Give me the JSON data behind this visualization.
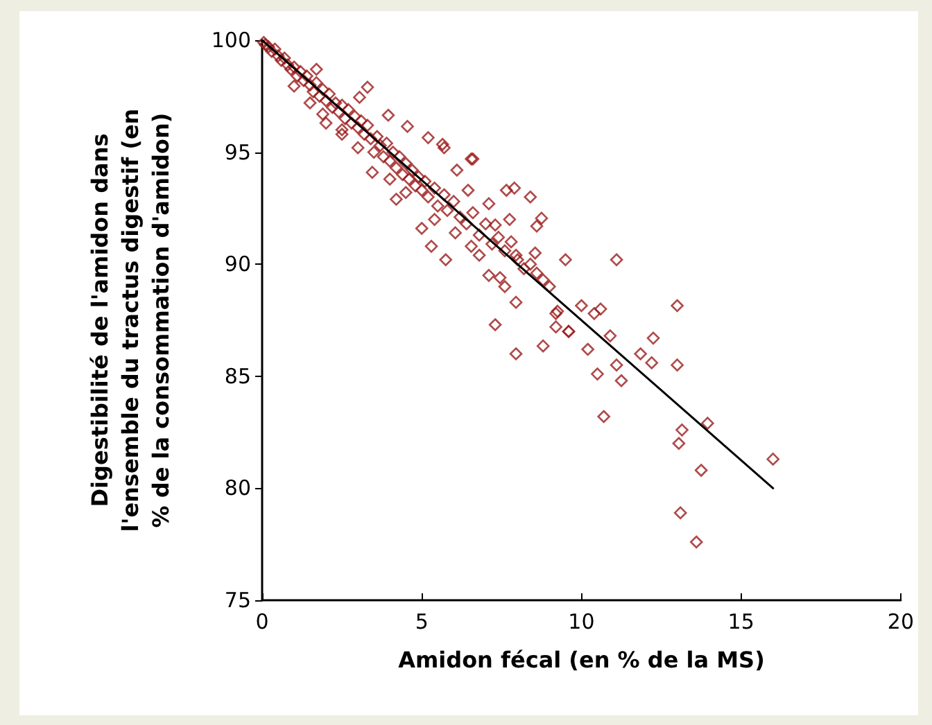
{
  "chart_data": {
    "type": "scatter",
    "xlabel": "Amidon fécal (en % de la MS)",
    "ylabel": "Digestibilité de l'amidon dans\nl'ensemble du tractus digestif (en\n% de la consommation d'amidon)",
    "xlim": [
      0,
      20
    ],
    "xticks": [
      0,
      5,
      10,
      15,
      20
    ],
    "ylim": [
      75,
      100
    ],
    "yticks": [
      75,
      80,
      85,
      90,
      95,
      100
    ],
    "marker": "diamond",
    "series": [
      {
        "color": "#9b1c1c",
        "x": [
          9.5,
          11.1,
          10.0,
          10.4,
          10.6,
          13.0,
          9.25,
          9.6,
          10.9,
          10.2,
          12.25,
          11.85,
          12.2,
          13.0,
          11.1,
          10.5,
          11.25,
          10.7,
          13.95,
          13.15,
          13.05,
          16.0,
          13.75,
          13.1,
          13.6,
          6.55,
          8.4,
          7.9,
          8.75,
          8.6,
          8.55,
          7.95,
          8.6,
          7.95,
          7.6,
          7.3,
          7.95,
          8.8,
          9.2,
          9.2,
          9.6,
          5.75,
          5.3,
          5.0,
          7.1,
          6.05,
          7.45,
          7.1,
          6.8,
          7.75,
          6.55,
          7.3,
          7.65,
          6.45,
          6.1,
          5.65,
          3.3,
          1.7,
          3.05,
          3.95,
          4.55,
          5.2,
          5.7,
          6.6,
          3.45,
          4.2,
          1.0,
          2.5,
          1.9,
          0.05,
          0.1,
          0.2,
          0.3,
          0.4,
          0.5,
          0.6,
          0.7,
          0.8,
          0.9,
          1.0,
          1.1,
          1.2,
          1.3,
          1.4,
          1.5,
          1.6,
          1.7,
          1.8,
          1.9,
          2.0,
          2.1,
          2.2,
          2.3,
          2.4,
          2.5,
          2.6,
          2.7,
          2.8,
          2.9,
          3.0,
          3.1,
          3.2,
          3.3,
          3.4,
          3.5,
          3.6,
          3.7,
          3.8,
          3.9,
          4.0,
          4.1,
          4.2,
          4.3,
          4.4,
          4.5,
          4.6,
          4.7,
          4.8,
          4.9,
          5.0,
          5.1,
          5.2,
          5.4,
          5.5,
          5.7,
          5.8,
          6.0,
          6.2,
          6.4,
          6.6,
          6.8,
          7.0,
          7.2,
          7.4,
          7.6,
          7.8,
          8.0,
          8.2,
          8.4,
          8.8,
          9.0,
          1.5,
          2.5,
          3.0,
          4.0,
          4.5,
          5.4,
          2.0
        ],
        "values": [
          90.2,
          90.2,
          88.15,
          87.8,
          88.0,
          88.15,
          87.9,
          87.0,
          86.8,
          86.2,
          86.7,
          86.0,
          85.6,
          85.5,
          85.5,
          85.1,
          84.8,
          83.2,
          82.9,
          82.6,
          82.0,
          81.3,
          80.8,
          78.9,
          77.6,
          94.7,
          93.0,
          93.4,
          92.05,
          91.7,
          90.5,
          90.4,
          89.6,
          88.3,
          89.0,
          87.3,
          86.0,
          86.35,
          87.8,
          87.2,
          87.0,
          90.2,
          90.8,
          91.6,
          92.7,
          91.4,
          89.4,
          89.5,
          90.4,
          92.0,
          90.8,
          91.75,
          93.3,
          93.3,
          94.2,
          95.35,
          97.9,
          98.7,
          97.45,
          96.65,
          96.15,
          95.65,
          95.2,
          94.7,
          94.1,
          92.9,
          97.95,
          95.8,
          96.7,
          99.9,
          99.8,
          99.7,
          99.5,
          99.6,
          99.3,
          99.1,
          99.2,
          98.9,
          98.7,
          98.8,
          98.4,
          98.6,
          98.2,
          98.4,
          98.0,
          97.7,
          98.1,
          97.5,
          97.8,
          97.3,
          97.6,
          97.0,
          97.2,
          96.8,
          97.1,
          96.5,
          96.9,
          96.3,
          96.6,
          96.1,
          96.4,
          95.8,
          96.2,
          95.6,
          95.0,
          95.7,
          95.3,
          94.8,
          95.4,
          94.6,
          95.0,
          94.3,
          94.8,
          94.0,
          94.5,
          93.8,
          94.2,
          93.5,
          93.9,
          93.3,
          93.7,
          93.0,
          93.4,
          92.6,
          93.1,
          92.4,
          92.8,
          92.1,
          91.8,
          92.3,
          91.3,
          91.8,
          90.9,
          91.2,
          90.6,
          91.0,
          90.2,
          89.8,
          90.0,
          89.3,
          89.0,
          97.2,
          96.0,
          95.2,
          93.8,
          93.2,
          92.0,
          96.3
        ]
      },
      {
        "type": "line",
        "color": "#000000",
        "marker": "none",
        "line_style": "solid",
        "x": [
          0,
          16
        ],
        "values": [
          100,
          80
        ]
      }
    ]
  }
}
